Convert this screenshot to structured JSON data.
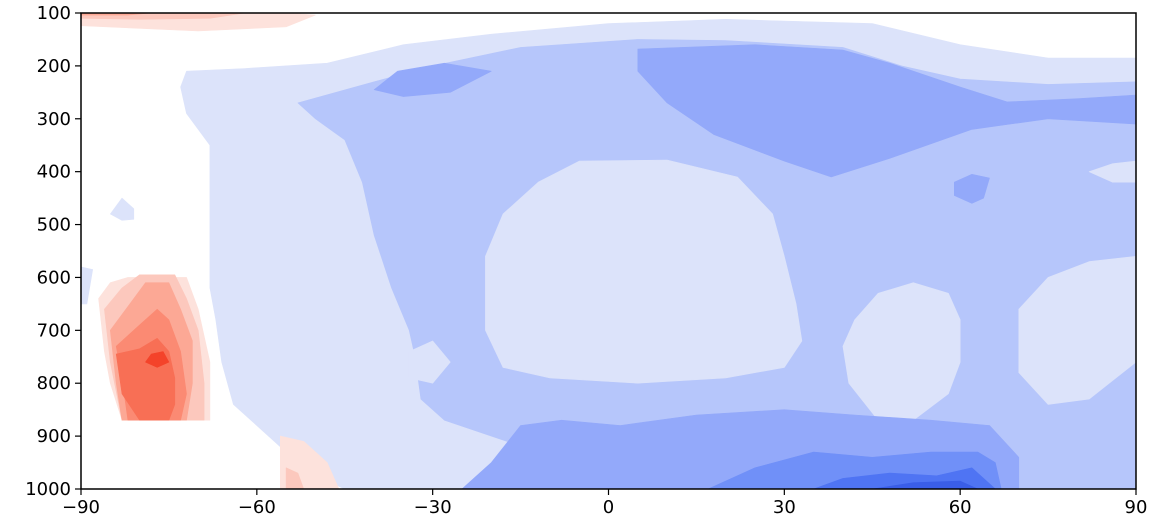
{
  "chart_data": {
    "type": "contour",
    "xlim": [
      -90,
      90
    ],
    "ylim": [
      1000,
      100
    ],
    "y_inverted": true,
    "x_ticks": [
      -90,
      -60,
      -30,
      0,
      30,
      60,
      90
    ],
    "x_tick_labels": [
      "−90",
      "−60",
      "−30",
      "0",
      "30",
      "60",
      "90"
    ],
    "y_ticks": [
      100,
      200,
      300,
      400,
      500,
      600,
      700,
      800,
      900,
      1000
    ],
    "y_tick_labels": [
      "100",
      "200",
      "300",
      "400",
      "500",
      "600",
      "700",
      "800",
      "900",
      "1000"
    ],
    "grid": false,
    "legend": "none",
    "colormap": "diverging blue-white-red",
    "level_colors": {
      "neg1": "#dce3fa",
      "neg2": "#b6c6fb",
      "neg3": "#93a9fa",
      "neg4": "#7090f8",
      "neg5": "#4f74f3",
      "neg6": "#3a5ee8",
      "pos1": "#fde2dc",
      "pos2": "#fcc8bd",
      "pos3": "#fca895",
      "pos4": "#fb8a73",
      "pos5": "#f86f55",
      "pos6": "#f4432a"
    },
    "regions": [
      {
        "level": "pos1",
        "points": [
          [
            -90,
            100
          ],
          [
            -55,
            100
          ],
          [
            -50,
            104
          ],
          [
            -55,
            126
          ],
          [
            -70,
            134
          ],
          [
            -90,
            124
          ]
        ]
      },
      {
        "level": "pos2",
        "points": [
          [
            -90,
            100
          ],
          [
            -62,
            100
          ],
          [
            -68,
            110
          ],
          [
            -80,
            112
          ],
          [
            -90,
            110
          ]
        ]
      },
      {
        "level": "pos3",
        "points": [
          [
            -90,
            100
          ],
          [
            -78,
            100
          ],
          [
            -82,
            104
          ],
          [
            -90,
            104
          ]
        ]
      },
      {
        "level": "neg1",
        "points": [
          [
            -72,
            210
          ],
          [
            -62,
            205
          ],
          [
            -48,
            195
          ],
          [
            -35,
            160
          ],
          [
            -20,
            140
          ],
          [
            0,
            120
          ],
          [
            20,
            112
          ],
          [
            45,
            120
          ],
          [
            60,
            160
          ],
          [
            75,
            185
          ],
          [
            90,
            185
          ],
          [
            90,
            1000
          ],
          [
            -45,
            1000
          ],
          [
            -50,
            975
          ],
          [
            -55,
            930
          ],
          [
            -60,
            880
          ],
          [
            -64,
            840
          ],
          [
            -66,
            760
          ],
          [
            -67,
            680
          ],
          [
            -68,
            620
          ],
          [
            -68,
            520
          ],
          [
            -68,
            420
          ],
          [
            -68,
            350
          ],
          [
            -72,
            290
          ],
          [
            -73,
            240
          ]
        ]
      },
      {
        "level": "neg1",
        "points": [
          [
            -83,
            450
          ],
          [
            -81,
            470
          ],
          [
            -81,
            490
          ],
          [
            -83,
            492
          ],
          [
            -85,
            480
          ]
        ]
      },
      {
        "level": "neg1",
        "points": [
          [
            -90,
            580
          ],
          [
            -88,
            585
          ],
          [
            -89,
            650
          ],
          [
            -90,
            650
          ]
        ]
      },
      {
        "level": "neg2",
        "points": [
          [
            -53,
            270
          ],
          [
            -40,
            230
          ],
          [
            -30,
            200
          ],
          [
            -15,
            165
          ],
          [
            5,
            150
          ],
          [
            20,
            152
          ],
          [
            40,
            165
          ],
          [
            50,
            200
          ],
          [
            60,
            225
          ],
          [
            75,
            235
          ],
          [
            90,
            230
          ],
          [
            90,
            1000
          ],
          [
            -17,
            1000
          ],
          [
            -10,
            990
          ],
          [
            -5,
            960
          ],
          [
            -12,
            930
          ],
          [
            -20,
            900
          ],
          [
            -28,
            870
          ],
          [
            -32,
            830
          ],
          [
            -33,
            750
          ],
          [
            -34,
            700
          ],
          [
            -37,
            620
          ],
          [
            -40,
            520
          ],
          [
            -42,
            420
          ],
          [
            -45,
            340
          ],
          [
            -50,
            300
          ]
        ]
      },
      {
        "level": "neg1",
        "points": [
          [
            -18,
            480
          ],
          [
            -12,
            420
          ],
          [
            -5,
            380
          ],
          [
            10,
            378
          ],
          [
            22,
            410
          ],
          [
            28,
            480
          ],
          [
            30,
            560
          ],
          [
            32,
            650
          ],
          [
            33,
            720
          ],
          [
            30,
            770
          ],
          [
            20,
            790
          ],
          [
            5,
            800
          ],
          [
            -10,
            790
          ],
          [
            -18,
            770
          ],
          [
            -21,
            700
          ],
          [
            -21,
            560
          ]
        ]
      },
      {
        "level": "neg1",
        "points": [
          [
            42,
            680
          ],
          [
            46,
            630
          ],
          [
            52,
            610
          ],
          [
            58,
            630
          ],
          [
            60,
            680
          ],
          [
            60,
            760
          ],
          [
            58,
            820
          ],
          [
            52,
            870
          ],
          [
            46,
            870
          ],
          [
            41,
            800
          ],
          [
            40,
            730
          ]
        ]
      },
      {
        "level": "neg1",
        "points": [
          [
            70,
            660
          ],
          [
            75,
            600
          ],
          [
            82,
            570
          ],
          [
            90,
            560
          ],
          [
            90,
            760
          ],
          [
            82,
            830
          ],
          [
            75,
            840
          ],
          [
            70,
            780
          ]
        ]
      },
      {
        "level": "neg1",
        "points": [
          [
            82,
            400
          ],
          [
            86,
            385
          ],
          [
            90,
            380
          ],
          [
            90,
            420
          ],
          [
            86,
            420
          ]
        ]
      },
      {
        "level": "neg1",
        "points": [
          [
            -34,
            740
          ],
          [
            -30,
            720
          ],
          [
            -27,
            760
          ],
          [
            -30,
            800
          ],
          [
            -34,
            790
          ]
        ]
      },
      {
        "level": "neg3",
        "points": [
          [
            -40,
            245
          ],
          [
            -36,
            210
          ],
          [
            -28,
            195
          ],
          [
            -20,
            210
          ],
          [
            -27,
            250
          ],
          [
            -35,
            258
          ]
        ]
      },
      {
        "level": "neg3",
        "points": [
          [
            5,
            168
          ],
          [
            25,
            160
          ],
          [
            40,
            170
          ],
          [
            48,
            195
          ],
          [
            60,
            240
          ],
          [
            68,
            268
          ],
          [
            80,
            262
          ],
          [
            90,
            255
          ],
          [
            90,
            310
          ],
          [
            75,
            300
          ],
          [
            62,
            320
          ],
          [
            48,
            375
          ],
          [
            38,
            410
          ],
          [
            30,
            380
          ],
          [
            18,
            330
          ],
          [
            10,
            270
          ],
          [
            5,
            210
          ]
        ]
      },
      {
        "level": "neg3",
        "points": [
          [
            59,
            420
          ],
          [
            62,
            405
          ],
          [
            65,
            412
          ],
          [
            64,
            450
          ],
          [
            62,
            460
          ],
          [
            59,
            445
          ]
        ]
      },
      {
        "level": "neg3",
        "points": [
          [
            -25,
            1000
          ],
          [
            -20,
            950
          ],
          [
            -15,
            880
          ],
          [
            -8,
            870
          ],
          [
            2,
            880
          ],
          [
            15,
            860
          ],
          [
            30,
            850
          ],
          [
            42,
            860
          ],
          [
            55,
            870
          ],
          [
            65,
            880
          ],
          [
            70,
            940
          ],
          [
            70,
            1000
          ]
        ]
      },
      {
        "level": "neg4",
        "points": [
          [
            17,
            1000
          ],
          [
            25,
            960
          ],
          [
            35,
            930
          ],
          [
            45,
            940
          ],
          [
            55,
            930
          ],
          [
            63,
            930
          ],
          [
            66,
            950
          ],
          [
            67,
            1000
          ]
        ]
      },
      {
        "level": "neg5",
        "points": [
          [
            35,
            1000
          ],
          [
            40,
            980
          ],
          [
            48,
            970
          ],
          [
            56,
            975
          ],
          [
            62,
            960
          ],
          [
            65,
            990
          ],
          [
            66,
            1000
          ]
        ]
      },
      {
        "level": "neg6",
        "points": [
          [
            45,
            1000
          ],
          [
            52,
            988
          ],
          [
            60,
            985
          ],
          [
            63,
            1000
          ]
        ]
      },
      {
        "level": "pos1",
        "points": [
          [
            -87,
            640
          ],
          [
            -85,
            610
          ],
          [
            -82,
            600
          ],
          [
            -72,
            600
          ],
          [
            -70,
            660
          ],
          [
            -68,
            760
          ],
          [
            -68,
            870
          ],
          [
            -83,
            870
          ],
          [
            -85,
            800
          ],
          [
            -86,
            740
          ]
        ]
      },
      {
        "level": "pos2",
        "points": [
          [
            -86,
            660
          ],
          [
            -83,
            620
          ],
          [
            -80,
            595
          ],
          [
            -74,
            595
          ],
          [
            -72,
            640
          ],
          [
            -70,
            700
          ],
          [
            -69,
            800
          ],
          [
            -69,
            870
          ],
          [
            -83,
            870
          ],
          [
            -85,
            760
          ]
        ]
      },
      {
        "level": "pos3",
        "points": [
          [
            -85,
            700
          ],
          [
            -82,
            655
          ],
          [
            -79,
            610
          ],
          [
            -75,
            610
          ],
          [
            -73,
            660
          ],
          [
            -71,
            720
          ],
          [
            -71,
            800
          ],
          [
            -72,
            870
          ],
          [
            -83,
            870
          ],
          [
            -84,
            800
          ]
        ]
      },
      {
        "level": "pos4",
        "points": [
          [
            -84,
            730
          ],
          [
            -80,
            690
          ],
          [
            -77,
            660
          ],
          [
            -75,
            680
          ],
          [
            -73,
            740
          ],
          [
            -72,
            820
          ],
          [
            -73,
            870
          ],
          [
            -82,
            870
          ],
          [
            -83,
            790
          ]
        ]
      },
      {
        "level": "pos5",
        "points": [
          [
            -84,
            745
          ],
          [
            -80,
            735
          ],
          [
            -77,
            715
          ],
          [
            -75,
            740
          ],
          [
            -74,
            790
          ],
          [
            -74,
            840
          ],
          [
            -75,
            870
          ],
          [
            -80,
            870
          ],
          [
            -83,
            820
          ]
        ]
      },
      {
        "level": "pos6",
        "points": [
          [
            -78,
            745
          ],
          [
            -76,
            740
          ],
          [
            -75,
            760
          ],
          [
            -77,
            770
          ],
          [
            -79,
            760
          ]
        ]
      },
      {
        "level": "pos1",
        "points": [
          [
            -56,
            1000
          ],
          [
            -56,
            900
          ],
          [
            -52,
            910
          ],
          [
            -48,
            950
          ],
          [
            -46,
            1000
          ]
        ]
      },
      {
        "level": "pos2",
        "points": [
          [
            -55,
            1000
          ],
          [
            -55,
            960
          ],
          [
            -53,
            970
          ],
          [
            -52,
            1000
          ]
        ]
      }
    ]
  }
}
